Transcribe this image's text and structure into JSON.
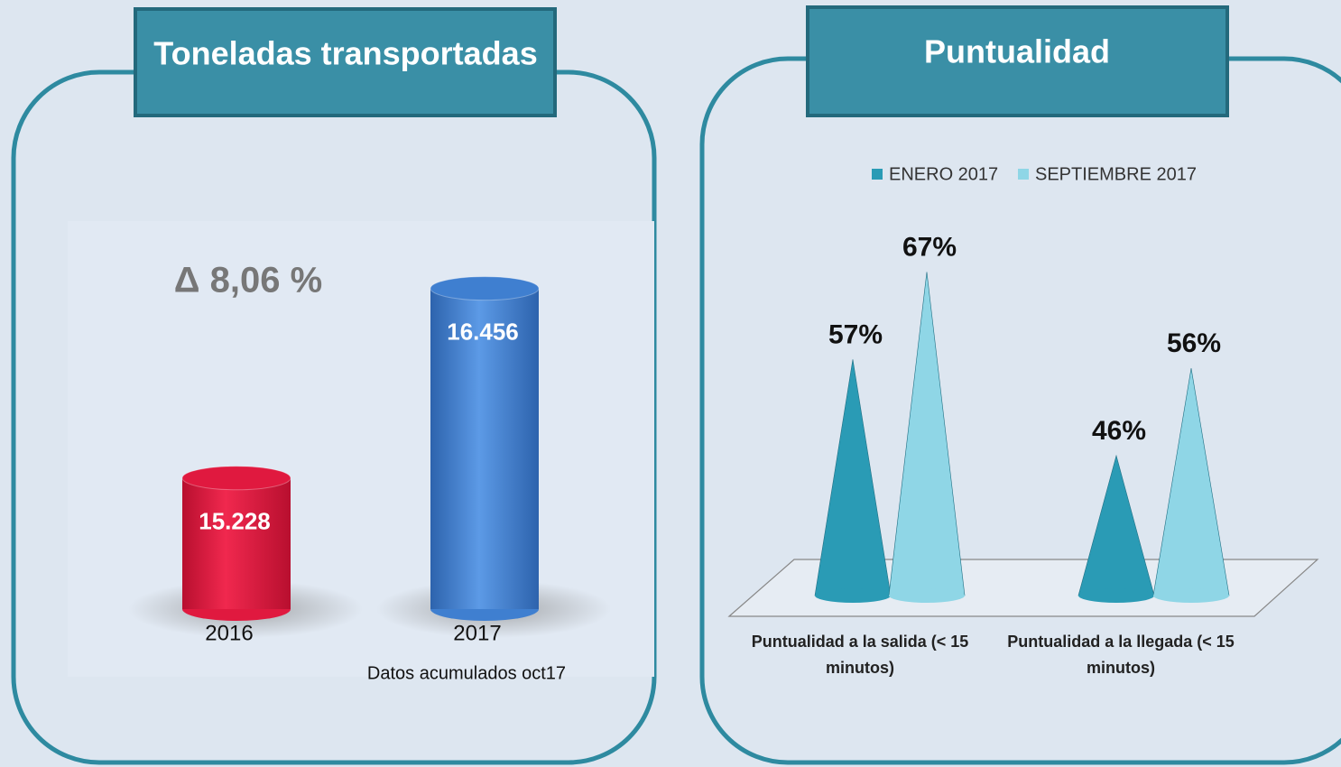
{
  "chart_data": [
    {
      "type": "bar",
      "shape": "cylinder",
      "title": "Toneladas transportadas",
      "categories": [
        "2016",
        "2017"
      ],
      "values": [
        15228,
        16456
      ],
      "value_labels": [
        "15.228",
        "16.456"
      ],
      "colors": [
        "#e0193f",
        "#3f7fd0"
      ],
      "ylim": [
        14350,
        16600
      ],
      "annotation": "Δ 8,06 %",
      "note": "Datos acumulados oct17"
    },
    {
      "type": "bar",
      "shape": "cone",
      "title": "Puntualidad",
      "categories": [
        "Puntualidad a la salida (< 15 minutos)",
        "Puntualidad a la llegada (< 15 minutos)"
      ],
      "series": [
        {
          "name": "ENERO 2017",
          "color": "#2a9bb5",
          "values": [
            57,
            46
          ],
          "value_labels": [
            "57%",
            "46%"
          ]
        },
        {
          "name": "SEPTIEMBRE 2017",
          "color": "#8fd6e6",
          "values": [
            67,
            56
          ],
          "value_labels": [
            "67%",
            "56%"
          ]
        }
      ],
      "ylim": [
        30,
        72
      ],
      "legend": "top"
    }
  ]
}
